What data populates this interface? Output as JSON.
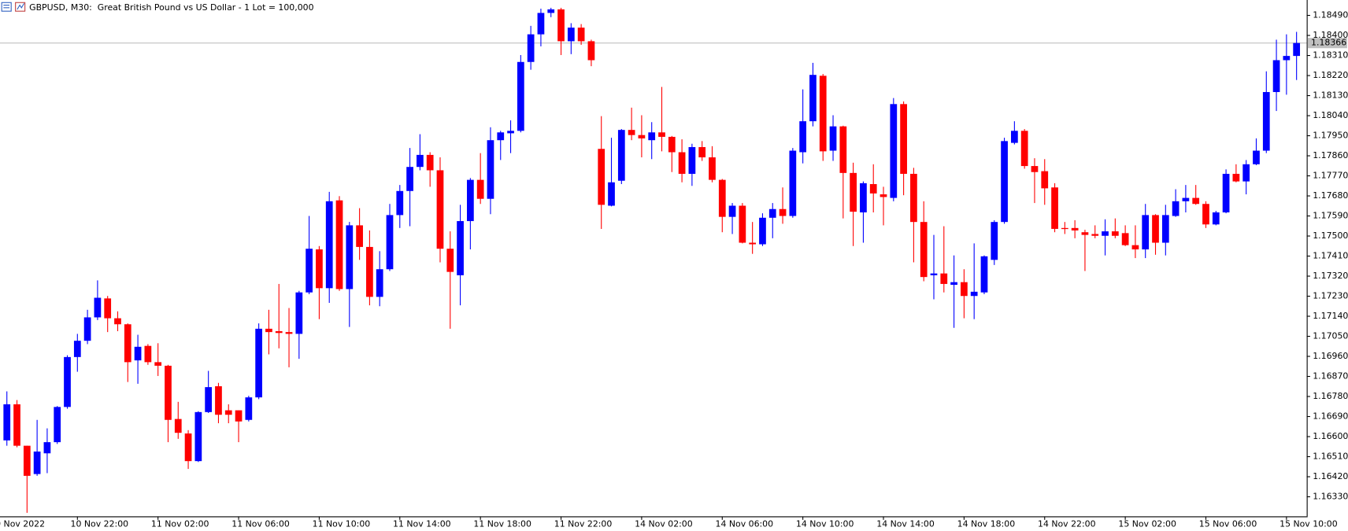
{
  "chart_data": {
    "type": "candlestick",
    "title": "GBPUSD, M30:  Great British Pound vs US Dollar - 1 Lot = 100,000",
    "categories": [
      "10 Nov 2022",
      null,
      null,
      null,
      null,
      null,
      null,
      null,
      "10 Nov 22:00",
      null,
      null,
      null,
      null,
      null,
      null,
      null,
      "11 Nov 02:00",
      null,
      null,
      null,
      null,
      null,
      null,
      null,
      "11 Nov 06:00",
      null,
      null,
      null,
      null,
      null,
      null,
      null,
      "11 Nov 10:00",
      null,
      null,
      null,
      null,
      null,
      null,
      null,
      "11 Nov 14:00",
      null,
      null,
      null,
      null,
      null,
      null,
      null,
      "11 Nov 18:00",
      null,
      null,
      null,
      null,
      null,
      null,
      null,
      "11 Nov 22:00",
      null,
      null,
      null,
      null,
      null,
      null,
      null,
      "14 Nov 02:00",
      null,
      null,
      null,
      null,
      null,
      null,
      null,
      "14 Nov 06:00",
      null,
      null,
      null,
      null,
      null,
      null,
      null,
      "14 Nov 10:00",
      null,
      null,
      null,
      null,
      null,
      null,
      null,
      "14 Nov 14:00",
      null,
      null,
      null,
      null,
      null,
      null,
      null,
      "14 Nov 18:00",
      null,
      null,
      null,
      null,
      null,
      null,
      null,
      "14 Nov 22:00",
      null,
      null,
      null,
      null,
      null,
      null,
      null,
      "15 Nov 02:00",
      null,
      null,
      null,
      null,
      null,
      null,
      null,
      "15 Nov 06:00",
      null,
      null,
      null,
      null,
      null,
      null,
      null,
      "15 Nov 10:00",
      null
    ],
    "open": [
      null,
      1.16583,
      1.16745,
      1.16559,
      1.16432,
      1.16525,
      1.16575,
      1.16733,
      1.16957,
      1.1703,
      1.17135,
      1.1722,
      1.17131,
      1.17104,
      1.16942,
      1.17007,
      1.16934,
      1.16918,
      1.16679,
      1.16614,
      1.1649,
      1.1671,
      1.16826,
      1.16718,
      1.16718,
      1.16675,
      1.16776,
      1.17084,
      1.17073,
      1.17069,
      1.17061,
      1.17247,
      1.1744,
      1.17266,
      1.1766,
      1.17262,
      1.17548,
      1.17451,
      1.17227,
      1.17351,
      1.17594,
      1.17702,
      1.1781,
      1.17864,
      1.17795,
      1.17443,
      1.17324,
      1.17567,
      1.17752,
      1.17667,
      1.1793,
      1.17961,
      1.17972,
      1.18281,
      1.18405,
      1.18501,
      1.18517,
      1.18374,
      1.18435,
      1.18374,
      1.17891,
      1.17636,
      1.17748,
      1.17976,
      1.17953,
      1.1793,
      1.17965,
      1.17945,
      1.17876,
      1.17779,
      1.17899,
      1.17853,
      1.17752,
      1.17586,
      1.17636,
      1.1747,
      1.17463,
      1.17582,
      1.17621,
      1.1759,
      1.17876,
      1.18015,
      1.18219,
      1.17883,
      1.17992,
      1.17783,
      1.17606,
      1.17733,
      1.17687,
      1.17671,
      1.18092,
      1.17779,
      1.17563,
      1.17324,
      1.17332,
      1.17281,
      1.17293,
      1.17231,
      1.17247,
      1.17393,
      1.17563,
      1.17918,
      1.17972,
      1.17814,
      1.17791,
      1.17718,
      1.17536,
      1.17536,
      1.17517,
      1.17509,
      1.17501,
      1.17521,
      1.17513,
      1.17459,
      1.1744,
      1.17594,
      1.1747,
      1.1759,
      1.17656,
      1.17671,
      1.17644,
      1.17552,
      1.17606,
      1.17779,
      1.17745,
      1.17822,
      1.17883,
      1.18146,
      1.18289,
      1.18308
    ],
    "high": [
      null,
      1.16803,
      1.16764,
      1.16559,
      1.16675,
      1.16637,
      1.16737,
      1.16965,
      1.17061,
      1.17169,
      1.17301,
      1.17231,
      1.17162,
      1.17108,
      1.17057,
      1.17015,
      1.17019,
      1.16922,
      1.16756,
      1.16629,
      1.16714,
      1.16895,
      1.16841,
      1.16745,
      1.16718,
      1.16783,
      1.17108,
      1.17169,
      1.17285,
      1.17177,
      1.17254,
      1.1759,
      1.17455,
      1.17698,
      1.17679,
      1.17563,
      1.17625,
      1.17525,
      1.17432,
      1.17644,
      1.17729,
      1.17895,
      1.17957,
      1.17876,
      1.17853,
      1.17521,
      1.1764,
      1.1776,
      1.17872,
      1.17988,
      1.17972,
      1.18019,
      1.18312,
      1.18443,
      1.1852,
      1.18524,
      1.18524,
      1.18455,
      1.18451,
      1.18381,
      1.18038,
      1.17941,
      1.1798,
      1.18076,
      1.18042,
      1.18011,
      1.18169,
      1.17949,
      1.17934,
      1.17914,
      1.17926,
      1.17903,
      1.17756,
      1.17648,
      1.17648,
      1.17563,
      1.17602,
      1.17648,
      1.17718,
      1.17895,
      1.18158,
      1.18277,
      1.18227,
      1.18042,
      1.17995,
      1.17829,
      1.17745,
      1.17822,
      1.17721,
      1.18119,
      1.18104,
      1.17806,
      1.17656,
      1.17505,
      1.17544,
      1.17413,
      1.17351,
      1.17467,
      1.17413,
      1.17571,
      1.17941,
      1.18015,
      1.1798,
      1.17849,
      1.17845,
      1.17737,
      1.17563,
      1.17571,
      1.17528,
      1.17548,
      1.17575,
      1.17579,
      1.17548,
      1.17548,
      1.17644,
      1.17598,
      1.1764,
      1.1771,
      1.17729,
      1.17729,
      1.17656,
      1.17613,
      1.17799,
      1.17822,
      1.17841,
      1.17938,
      1.18239,
      1.18381,
      1.18405,
      1.18416
    ],
    "low": [
      null,
      1.16559,
      1.16552,
      1.16258,
      1.16424,
      1.16436,
      1.16567,
      1.16725,
      1.16891,
      1.17015,
      1.17123,
      1.17069,
      1.17073,
      1.16845,
      1.16837,
      1.16922,
      1.16872,
      1.16575,
      1.1659,
      1.16455,
      1.16486,
      1.16706,
      1.1666,
      1.1666,
      1.16575,
      1.16668,
      1.16768,
      1.16969,
      1.16996,
      1.16911,
      1.16949,
      1.17239,
      1.17127,
      1.172,
      1.17254,
      1.17092,
      1.17393,
      1.17189,
      1.17185,
      1.17343,
      1.17536,
      1.17544,
      1.17795,
      1.17721,
      1.17382,
      1.17084,
      1.17189,
      1.1744,
      1.17644,
      1.17598,
      1.17841,
      1.17872,
      1.17965,
      1.18246,
      1.18351,
      1.18482,
      1.18312,
      1.18316,
      1.18358,
      1.18262,
      1.17532,
      1.17633,
      1.17733,
      1.1793,
      1.17853,
      1.17845,
      1.1788,
      1.17787,
      1.17741,
      1.17725,
      1.17837,
      1.17741,
      1.17517,
      1.17509,
      1.17467,
      1.1742,
      1.17455,
      1.1749,
      1.17555,
      1.17582,
      1.17826,
      1.17992,
      1.17837,
      1.17837,
      1.17579,
      1.17455,
      1.1747,
      1.17606,
      1.17548,
      1.17656,
      1.17683,
      1.17382,
      1.17297,
      1.17216,
      1.17247,
      1.17088,
      1.17131,
      1.17127,
      1.17239,
      1.1737,
      1.17555,
      1.17911,
      1.17802,
      1.17648,
      1.1764,
      1.17517,
      1.17509,
      1.1749,
      1.17343,
      1.1749,
      1.17413,
      1.1749,
      1.17455,
      1.17401,
      1.17401,
      1.17416,
      1.17413,
      1.17586,
      1.17606,
      1.1764,
      1.17536,
      1.17548,
      1.17602,
      1.17741,
      1.17687,
      1.17818,
      1.17872,
      1.18061,
      1.18134,
      1.182
    ],
    "close": [
      null,
      1.16745,
      1.16559,
      1.16424,
      1.16533,
      1.16575,
      1.16733,
      1.16957,
      1.1703,
      1.17135,
      1.17223,
      1.17131,
      1.17104,
      1.16934,
      1.17003,
      1.16934,
      1.16918,
      1.16675,
      1.16617,
      1.1649,
      1.1671,
      1.16822,
      1.16698,
      1.16698,
      1.16668,
      1.16776,
      1.17084,
      1.17069,
      1.17065,
      1.17061,
      1.17247,
      1.17443,
      1.17266,
      1.17656,
      1.17262,
      1.17548,
      1.17451,
      1.17227,
      1.17351,
      1.17594,
      1.17702,
      1.1781,
      1.17864,
      1.17795,
      1.17443,
      1.17339,
      1.17567,
      1.17752,
      1.17667,
      1.1793,
      1.17965,
      1.17972,
      1.18281,
      1.18405,
      1.18501,
      1.18517,
      1.18374,
      1.18435,
      1.18374,
      1.18289,
      1.1764,
      1.17741,
      1.17976,
      1.17953,
      1.17938,
      1.17965,
      1.17945,
      1.17876,
      1.17779,
      1.17899,
      1.17853,
      1.17752,
      1.17586,
      1.17636,
      1.1747,
      1.17463,
      1.17582,
      1.17621,
      1.1759,
      1.17883,
      1.18015,
      1.18223,
      1.1788,
      1.17992,
      1.17783,
      1.17609,
      1.17737,
      1.17691,
      1.17675,
      1.18092,
      1.17779,
      1.17563,
      1.17316,
      1.17332,
      1.17285,
      1.17293,
      1.17231,
      1.1725,
      1.17409,
      1.17563,
      1.17926,
      1.17972,
      1.17814,
      1.17787,
      1.17714,
      1.17532,
      1.17532,
      1.17525,
      1.17505,
      1.17501,
      1.17521,
      1.17501,
      1.17459,
      1.1744,
      1.17594,
      1.1747,
      1.17594,
      1.17656,
      1.17671,
      1.17644,
      1.17552,
      1.17606,
      1.17779,
      1.17745,
      1.17822,
      1.17883,
      1.18146,
      1.18289,
      1.18308,
      1.18366
    ],
    "up_color": "#0000ff",
    "down_color": "#ff0000",
    "ylim": [
      1.16242,
      1.18559
    ],
    "yticks": [
      {
        "value": 1.1849,
        "label": "1.18490"
      },
      {
        "value": 1.184,
        "label": "1.18400"
      },
      {
        "value": 1.1831,
        "label": "1.18310"
      },
      {
        "value": 1.1822,
        "label": "1.18220"
      },
      {
        "value": 1.1813,
        "label": "1.18130"
      },
      {
        "value": 1.1804,
        "label": "1.18040"
      },
      {
        "value": 1.1795,
        "label": "1.17950"
      },
      {
        "value": 1.1786,
        "label": "1.17860"
      },
      {
        "value": 1.1777,
        "label": "1.17770"
      },
      {
        "value": 1.1768,
        "label": "1.17680"
      },
      {
        "value": 1.1759,
        "label": "1.17590"
      },
      {
        "value": 1.175,
        "label": "1.17500"
      },
      {
        "value": 1.1741,
        "label": "1.17410"
      },
      {
        "value": 1.1732,
        "label": "1.17320"
      },
      {
        "value": 1.1723,
        "label": "1.17230"
      },
      {
        "value": 1.1714,
        "label": "1.17140"
      },
      {
        "value": 1.1705,
        "label": "1.17050"
      },
      {
        "value": 1.1696,
        "label": "1.16960"
      },
      {
        "value": 1.1687,
        "label": "1.16870"
      },
      {
        "value": 1.1678,
        "label": "1.16780"
      },
      {
        "value": 1.1669,
        "label": "1.16690"
      },
      {
        "value": 1.166,
        "label": "1.16600"
      },
      {
        "value": 1.1651,
        "label": "1.16510"
      },
      {
        "value": 1.1642,
        "label": "1.16420"
      },
      {
        "value": 1.1633,
        "label": "1.16330"
      }
    ],
    "current_price": 1.18366,
    "current_price_color": "#c0c0c0",
    "grid": false
  }
}
